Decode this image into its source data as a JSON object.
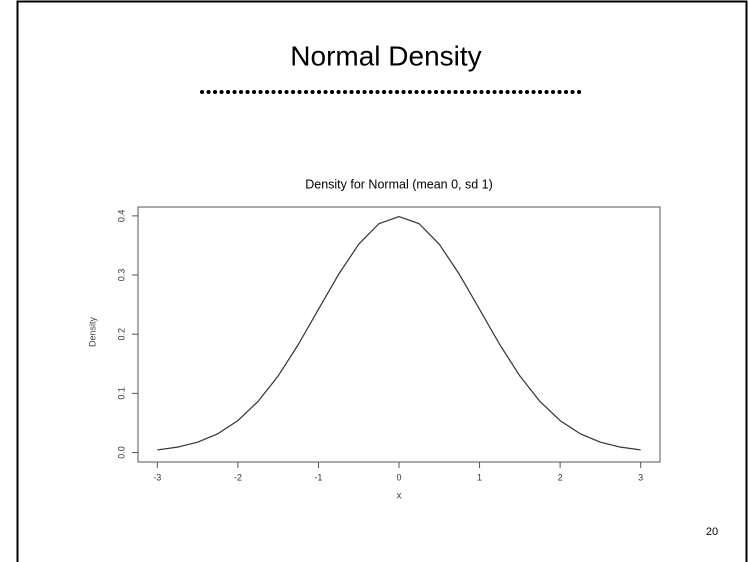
{
  "slide": {
    "title": "Normal Density",
    "page_number": "20"
  },
  "chart_data": {
    "type": "line",
    "title": "Density for Normal (mean 0, sd 1)",
    "x_label": "x",
    "y_label": "Density",
    "x": [
      -3,
      -2.75,
      -2.5,
      -2.25,
      -2,
      -1.75,
      -1.5,
      -1.25,
      -1,
      -0.75,
      -0.5,
      -0.25,
      0,
      0.25,
      0.5,
      0.75,
      1,
      1.25,
      1.5,
      1.75,
      2,
      2.25,
      2.5,
      2.75,
      3
    ],
    "values": [
      0.0044,
      0.0091,
      0.0175,
      0.0317,
      0.054,
      0.0863,
      0.1295,
      0.1826,
      0.242,
      0.3011,
      0.3521,
      0.3867,
      0.3989,
      0.3867,
      0.3521,
      0.3011,
      0.242,
      0.1826,
      0.1295,
      0.0863,
      0.054,
      0.0317,
      0.0175,
      0.0091,
      0.0044
    ],
    "color": "#333333",
    "xlim": [
      -3.24,
      3.24
    ],
    "xticks": [
      -3,
      -2,
      -1,
      0,
      1,
      2,
      3
    ],
    "ylim": [
      -0.016,
      0.415
    ],
    "yticks": [
      {
        "value": 0,
        "label": "0.0"
      },
      0.1,
      0.2,
      0.3,
      0.4
    ]
  }
}
